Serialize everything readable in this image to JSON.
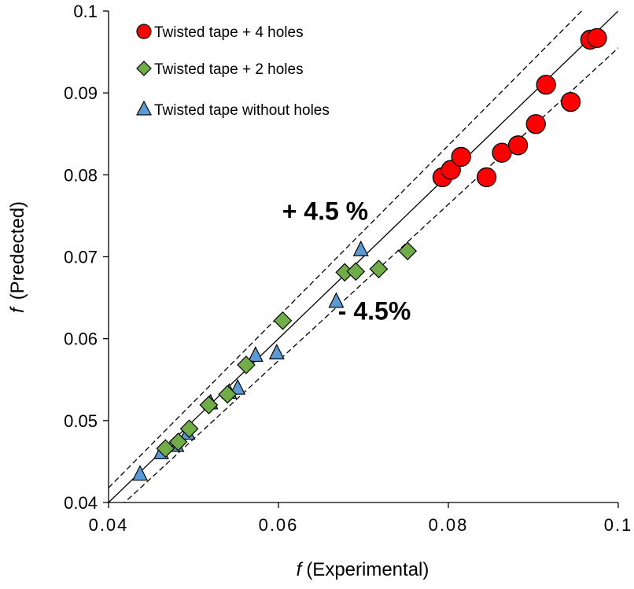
{
  "chart_data": {
    "type": "scatter",
    "title": "",
    "xlabel": "(Experimental)",
    "xlabel_symbol": "f",
    "ylabel": "(Predected)",
    "ylabel_symbol": "f",
    "xlim": [
      0.04,
      0.1
    ],
    "ylim": [
      0.04,
      0.1
    ],
    "x_ticks": [
      0.04,
      0.06,
      0.08,
      0.1
    ],
    "x_tick_labels": [
      "0.04",
      "0.06",
      "0.08",
      "0.1"
    ],
    "y_ticks": [
      0.04,
      0.05,
      0.06,
      0.07,
      0.08,
      0.09,
      0.1
    ],
    "y_tick_labels": [
      "0.04",
      "0.05",
      "0.06",
      "0.07",
      "0.08",
      "0.09",
      "0.1"
    ],
    "grid": false,
    "legend_position": "top-left",
    "series": [
      {
        "name": "Twisted tape + 4 holes",
        "marker": "circle",
        "color": "#ff0000",
        "points": [
          [
            0.0793,
            0.0797
          ],
          [
            0.0803,
            0.0806
          ],
          [
            0.0815,
            0.0822
          ],
          [
            0.0845,
            0.0797
          ],
          [
            0.0863,
            0.0827
          ],
          [
            0.0882,
            0.0836
          ],
          [
            0.0903,
            0.0862
          ],
          [
            0.0915,
            0.091
          ],
          [
            0.0944,
            0.0889
          ],
          [
            0.0967,
            0.0965
          ],
          [
            0.0975,
            0.0967
          ]
        ]
      },
      {
        "name": "Twisted tape + 2 holes",
        "marker": "diamond",
        "color": "#70ad47",
        "points": [
          [
            0.0467,
            0.0466
          ],
          [
            0.0482,
            0.0474
          ],
          [
            0.0495,
            0.049
          ],
          [
            0.0518,
            0.0519
          ],
          [
            0.054,
            0.0532
          ],
          [
            0.0562,
            0.0568
          ],
          [
            0.0605,
            0.0622
          ],
          [
            0.0678,
            0.0681
          ],
          [
            0.0691,
            0.0682
          ],
          [
            0.0718,
            0.0685
          ],
          [
            0.0752,
            0.0707
          ]
        ]
      },
      {
        "name": "Twisted tape without holes",
        "marker": "triangle",
        "color": "#5b9bd5",
        "points": [
          [
            0.0437,
            0.0435
          ],
          [
            0.0462,
            0.0461
          ],
          [
            0.048,
            0.047
          ],
          [
            0.0493,
            0.0485
          ],
          [
            0.052,
            0.0522
          ],
          [
            0.0542,
            0.0535
          ],
          [
            0.0552,
            0.054
          ],
          [
            0.0573,
            0.058
          ],
          [
            0.0598,
            0.0583
          ],
          [
            0.0668,
            0.0646
          ],
          [
            0.0697,
            0.0709
          ]
        ]
      }
    ],
    "lines": [
      {
        "name": "parity-line",
        "style": "solid",
        "factor": 1.0
      },
      {
        "name": "plus-4.5-percent-line",
        "style": "dashed",
        "factor": 1.045
      },
      {
        "name": "minus-4.5-percent-line",
        "style": "dashed",
        "factor": 0.955
      }
    ],
    "annotations": [
      {
        "name": "plus-annotation",
        "text": "+ 4.5 %",
        "x": 0.0655,
        "y": 0.0745
      },
      {
        "name": "minus-annotation",
        "text": "- 4.5%",
        "x": 0.0713,
        "y": 0.0623
      }
    ]
  }
}
